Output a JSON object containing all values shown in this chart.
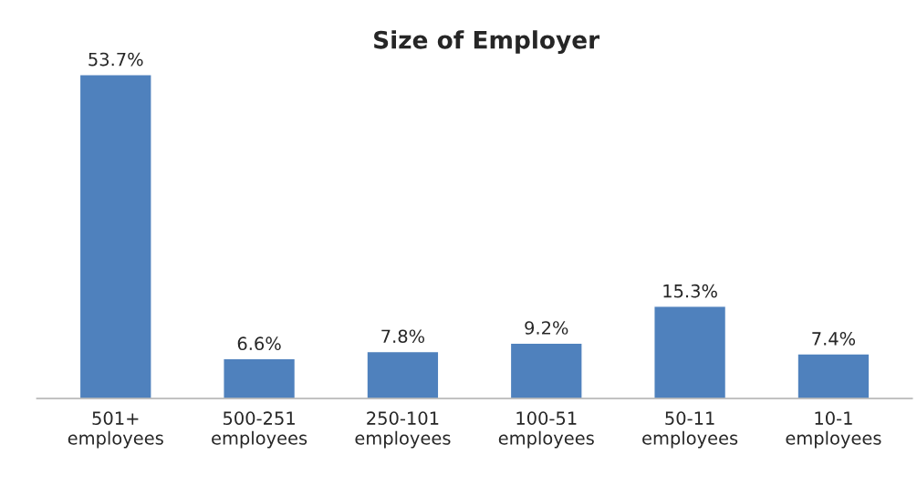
{
  "chart_data": {
    "type": "bar",
    "title": "Size of Employer",
    "categories": [
      "501+\nemployees",
      "500-251\nemployees",
      "250-101\nemployees",
      "100-51\nemployees",
      "50-11\nemployees",
      "10-1\nemployees"
    ],
    "values": [
      53.7,
      6.6,
      7.8,
      9.2,
      15.3,
      7.4
    ],
    "value_labels": [
      "53.7%",
      "6.6%",
      "7.8%",
      "9.2%",
      "15.3%",
      "7.4%"
    ],
    "color": "#4f81bd",
    "grid": false,
    "legend": false
  }
}
